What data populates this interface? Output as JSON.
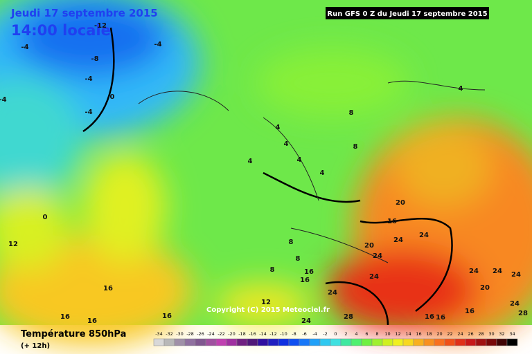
{
  "header": {
    "date": "Jeudi 17 septembre 2015",
    "time": "14:00 locale",
    "run": "Run GFS 0 Z du Jeudi 17 septembre 2015"
  },
  "copyright": "Copyright (C) 2015 Meteociel.fr",
  "footer": {
    "title": "Température 850hPa",
    "lead": "(+ 12h)"
  },
  "colorbar": {
    "ticks": [
      -34,
      -32,
      -30,
      -28,
      -26,
      -24,
      -22,
      -20,
      -18,
      -16,
      -14,
      -12,
      -10,
      -8,
      -6,
      -4,
      -2,
      0,
      2,
      4,
      6,
      8,
      10,
      12,
      14,
      16,
      18,
      20,
      22,
      24,
      26,
      28,
      30,
      32,
      34
    ],
    "colors": [
      "#d8d8d8",
      "#b8b8b8",
      "#a090a8",
      "#9070a0",
      "#805890",
      "#a050a0",
      "#c040b0",
      "#a030a0",
      "#702080",
      "#501878",
      "#3010a0",
      "#2020c0",
      "#1030e0",
      "#1050f0",
      "#1878f8",
      "#20a0f8",
      "#30c8f0",
      "#40e0e0",
      "#40e8a0",
      "#50f070",
      "#70f040",
      "#a0f030",
      "#d0f020",
      "#f0f020",
      "#f8d820",
      "#f8b020",
      "#f89020",
      "#f87020",
      "#f05018",
      "#e03018",
      "#c81818",
      "#a01010",
      "#780808",
      "#400404",
      "#000000"
    ]
  },
  "contour_labels": [
    -12,
    -4,
    -8,
    -4,
    -4,
    -4,
    0,
    -4,
    4,
    8,
    4,
    8,
    4,
    4,
    4,
    4,
    0,
    12,
    20,
    16,
    24,
    24,
    20,
    8,
    24,
    8,
    8,
    16,
    16,
    24,
    16,
    24,
    24,
    24,
    20,
    24,
    12,
    24,
    16,
    16,
    16,
    24,
    28,
    16,
    16,
    16,
    28
  ]
}
